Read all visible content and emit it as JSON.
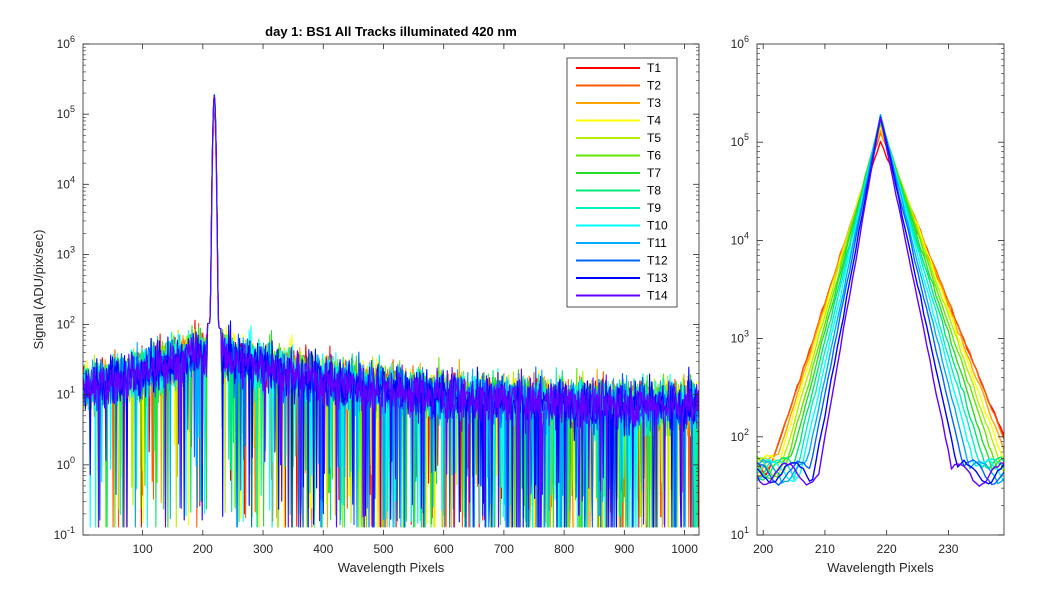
{
  "chart_data": [
    {
      "type": "line",
      "title": "day 1: BS1   All Tracks illuminated   420 nm",
      "xlabel": "Wavelength Pixels",
      "ylabel": "Signal (ADU/pix/sec)",
      "xlim": [
        1,
        1024
      ],
      "ylim": [
        0.1,
        1000000
      ],
      "yscale": "log",
      "xticks": [
        100,
        200,
        300,
        400,
        500,
        600,
        700,
        800,
        900,
        1000
      ],
      "yticks": [
        {
          "value": 0.1,
          "base": "10",
          "exp": "-1"
        },
        {
          "value": 1,
          "base": "10",
          "exp": "0"
        },
        {
          "value": 10,
          "base": "10",
          "exp": "1"
        },
        {
          "value": 100,
          "base": "10",
          "exp": "2"
        },
        {
          "value": 1000,
          "base": "10",
          "exp": "3"
        },
        {
          "value": 10000,
          "base": "10",
          "exp": "4"
        },
        {
          "value": 100000,
          "base": "10",
          "exp": "5"
        },
        {
          "value": 1000000,
          "base": "10",
          "exp": "6"
        }
      ],
      "grid": false,
      "legend_position": "top-right",
      "shape": {
        "peak_x": 219,
        "baseline_near_peak": 40,
        "baseline_far": 8
      },
      "series": [
        {
          "name": "T1",
          "color": "#ff0000",
          "peak": 100000
        },
        {
          "name": "T2",
          "color": "#ff5a00",
          "peak": 125000
        },
        {
          "name": "T3",
          "color": "#ffa500",
          "peak": 135000
        },
        {
          "name": "T4",
          "color": "#ffff00",
          "peak": 145000
        },
        {
          "name": "T5",
          "color": "#b4f000",
          "peak": 155000
        },
        {
          "name": "T6",
          "color": "#64e600",
          "peak": 160000
        },
        {
          "name": "T7",
          "color": "#28dc28",
          "peak": 165000
        },
        {
          "name": "T8",
          "color": "#00e678",
          "peak": 170000
        },
        {
          "name": "T9",
          "color": "#00f0c8",
          "peak": 175000
        },
        {
          "name": "T10",
          "color": "#00ffff",
          "peak": 180000
        },
        {
          "name": "T11",
          "color": "#00aaff",
          "peak": 185000
        },
        {
          "name": "T12",
          "color": "#0064ff",
          "peak": 190000
        },
        {
          "name": "T13",
          "color": "#0000ff",
          "peak": 185000
        },
        {
          "name": "T14",
          "color": "#6400ff",
          "peak": 180000
        }
      ]
    },
    {
      "type": "line",
      "title": "",
      "xlabel": "Wavelength Pixels",
      "ylabel": "",
      "xlim": [
        199,
        239
      ],
      "ylim": [
        10,
        1000000
      ],
      "yscale": "log",
      "xticks": [
        200,
        210,
        220,
        230
      ],
      "yticks": [
        {
          "value": 10,
          "base": "10",
          "exp": "1"
        },
        {
          "value": 100,
          "base": "10",
          "exp": "2"
        },
        {
          "value": 1000,
          "base": "10",
          "exp": "3"
        },
        {
          "value": 10000,
          "base": "10",
          "exp": "4"
        },
        {
          "value": 100000,
          "base": "10",
          "exp": "5"
        },
        {
          "value": 1000000,
          "base": "10",
          "exp": "6"
        }
      ],
      "grid": false,
      "series_from_left_panel": true,
      "peak_x": 219,
      "baseline_value": 50
    }
  ]
}
